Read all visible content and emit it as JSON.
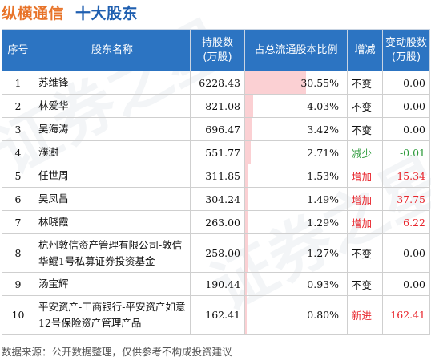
{
  "header": {
    "company": "纵横通信",
    "title": "十大股东"
  },
  "table": {
    "columns": [
      "序号",
      "股东名称",
      "持股数\n(万股)",
      "占总流通股本比例",
      "增减",
      "变动股数\n(万股)"
    ],
    "rows": [
      {
        "rank": "1",
        "name": "苏维锋",
        "shares": "6228.43",
        "ratio": "30.55%",
        "ratio_value": 30.55,
        "change": "不变",
        "change_type": "same",
        "delta": "0.00"
      },
      {
        "rank": "2",
        "name": "林爱华",
        "shares": "821.08",
        "ratio": "4.03%",
        "ratio_value": 4.03,
        "change": "不变",
        "change_type": "same",
        "delta": "0.00"
      },
      {
        "rank": "3",
        "name": "吴海涛",
        "shares": "696.47",
        "ratio": "3.42%",
        "ratio_value": 3.42,
        "change": "不变",
        "change_type": "same",
        "delta": "0.00"
      },
      {
        "rank": "4",
        "name": "濮澍",
        "shares": "551.77",
        "ratio": "2.71%",
        "ratio_value": 2.71,
        "change": "减少",
        "change_type": "down",
        "delta": "-0.01"
      },
      {
        "rank": "5",
        "name": "任世周",
        "shares": "311.85",
        "ratio": "1.53%",
        "ratio_value": 1.53,
        "change": "增加",
        "change_type": "up",
        "delta": "15.34"
      },
      {
        "rank": "6",
        "name": "吴凤昌",
        "shares": "304.24",
        "ratio": "1.49%",
        "ratio_value": 1.49,
        "change": "增加",
        "change_type": "up",
        "delta": "37.75"
      },
      {
        "rank": "7",
        "name": "林晓霞",
        "shares": "263.00",
        "ratio": "1.29%",
        "ratio_value": 1.29,
        "change": "增加",
        "change_type": "up",
        "delta": "6.22"
      },
      {
        "rank": "8",
        "name": "杭州敦信资产管理有限公司-敦信华鲲1号私募证券投资基金",
        "shares": "258.00",
        "ratio": "1.27%",
        "ratio_value": 1.27,
        "change": "不变",
        "change_type": "same",
        "delta": "0.00",
        "tall": true
      },
      {
        "rank": "9",
        "name": "汤宝辉",
        "shares": "190.44",
        "ratio": "0.93%",
        "ratio_value": 0.93,
        "change": "不变",
        "change_type": "same",
        "delta": "0.00"
      },
      {
        "rank": "10",
        "name": "平安资产-工商银行-平安资产如意12号保险资产管理产品",
        "shares": "162.41",
        "ratio": "0.80%",
        "ratio_value": 0.8,
        "change": "新进",
        "change_type": "new",
        "delta": "162.41",
        "tall": true
      }
    ]
  },
  "colors": {
    "header_bg": "#2c74c2",
    "bar": "#fbd0d3",
    "up": "#e8242b",
    "down": "#2c9a3a",
    "company": "#e8742a",
    "title": "#1f5fb0"
  },
  "footer": {
    "source": "数据来源：公开数据整理，仅供参考不构成投资建议"
  },
  "watermark": "证券之星"
}
